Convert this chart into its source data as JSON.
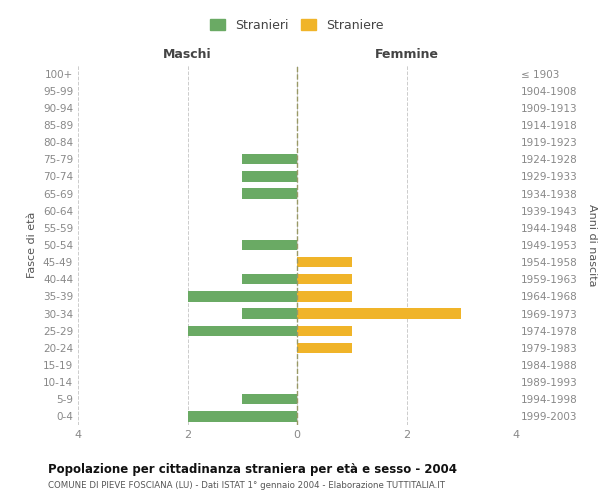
{
  "age_groups": [
    "100+",
    "95-99",
    "90-94",
    "85-89",
    "80-84",
    "75-79",
    "70-74",
    "65-69",
    "60-64",
    "55-59",
    "50-54",
    "45-49",
    "40-44",
    "35-39",
    "30-34",
    "25-29",
    "20-24",
    "15-19",
    "10-14",
    "5-9",
    "0-4"
  ],
  "birth_years": [
    "≤ 1903",
    "1904-1908",
    "1909-1913",
    "1914-1918",
    "1919-1923",
    "1924-1928",
    "1929-1933",
    "1934-1938",
    "1939-1943",
    "1944-1948",
    "1949-1953",
    "1954-1958",
    "1959-1963",
    "1964-1968",
    "1969-1973",
    "1974-1978",
    "1979-1983",
    "1984-1988",
    "1989-1993",
    "1994-1998",
    "1999-2003"
  ],
  "males": [
    0,
    0,
    0,
    0,
    0,
    1,
    1,
    1,
    0,
    0,
    1,
    0,
    1,
    2,
    1,
    2,
    0,
    0,
    0,
    1,
    2
  ],
  "females": [
    0,
    0,
    0,
    0,
    0,
    0,
    0,
    0,
    0,
    0,
    0,
    1,
    1,
    1,
    3,
    1,
    1,
    0,
    0,
    0,
    0
  ],
  "male_color": "#6aaa64",
  "female_color": "#f0b429",
  "male_label": "Stranieri",
  "female_label": "Straniere",
  "title": "Popolazione per cittadinanza straniera per età e sesso - 2004",
  "subtitle": "COMUNE DI PIEVE FOSCIANA (LU) - Dati ISTAT 1° gennaio 2004 - Elaborazione TUTTITALIA.IT",
  "xlabel_left": "Maschi",
  "xlabel_right": "Femmine",
  "ylabel_left": "Fasce di età",
  "ylabel_right": "Anni di nascita",
  "xlim": 4,
  "bg_color": "#ffffff",
  "grid_color": "#cccccc",
  "center_line_color": "#999966"
}
